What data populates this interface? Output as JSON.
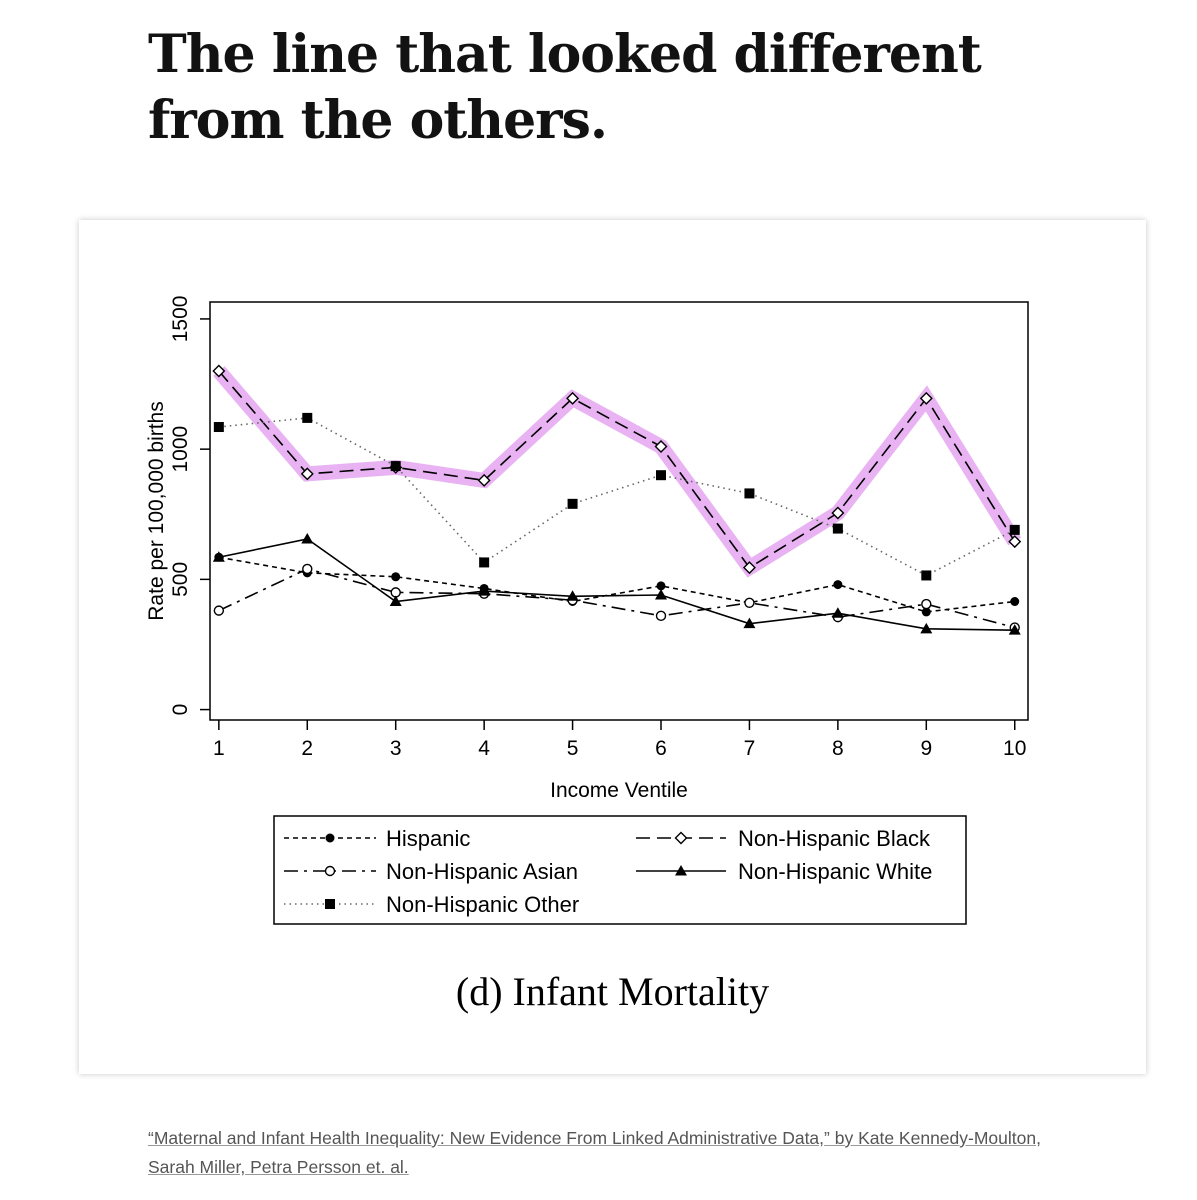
{
  "headline": "The line that looked different from the others.",
  "figure": {
    "caption": "(d) Infant Mortality"
  },
  "source": "“Maternal and Infant Health Inequality: New Evidence From Linked Administrative Data,” by Kate Kennedy-Moulton, Sarah Miller, Petra Persson et. al.",
  "colors": {
    "highlight": "#e9b3f3",
    "line": "#000000"
  },
  "chart_data": {
    "type": "line",
    "title": "",
    "xlabel": "Income Ventile",
    "ylabel": "Rate per 100,000 births",
    "x": [
      1,
      2,
      3,
      4,
      5,
      6,
      7,
      8,
      9,
      10
    ],
    "xticks": [
      "1",
      "2",
      "3",
      "4",
      "5",
      "6",
      "7",
      "8",
      "9",
      "10"
    ],
    "yticks": [
      "0",
      "500",
      "1000",
      "1500"
    ],
    "xlim": [
      0.9,
      10.15
    ],
    "ylim": [
      -40,
      1565
    ],
    "grid": false,
    "legend_placement": "bottom",
    "highlighted_series": "Non-Hispanic Black",
    "series": [
      {
        "name": "Hispanic",
        "dash": "short-dash",
        "marker": "filled-circle",
        "values": [
          585,
          525,
          510,
          465,
          415,
          475,
          410,
          480,
          375,
          415
        ]
      },
      {
        "name": "Non-Hispanic Black",
        "dash": "long-dash",
        "marker": "hollow-diamond",
        "values": [
          1300,
          905,
          930,
          880,
          1195,
          1010,
          545,
          755,
          1195,
          645
        ]
      },
      {
        "name": "Non-Hispanic Asian",
        "dash": "dash-dot",
        "marker": "hollow-circle",
        "values": [
          380,
          540,
          450,
          445,
          420,
          360,
          410,
          355,
          405,
          315
        ]
      },
      {
        "name": "Non-Hispanic White",
        "dash": "solid",
        "marker": "filled-triangle",
        "values": [
          585,
          655,
          415,
          455,
          435,
          440,
          330,
          370,
          310,
          305
        ]
      },
      {
        "name": "Non-Hispanic Other",
        "dash": "dotted",
        "marker": "filled-square",
        "values": [
          1085,
          1120,
          935,
          565,
          790,
          900,
          830,
          695,
          515,
          690
        ]
      }
    ]
  }
}
